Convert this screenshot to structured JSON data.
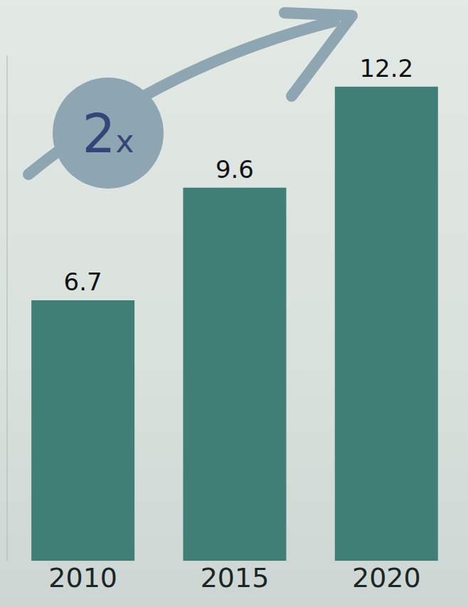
{
  "chart_data": {
    "type": "bar",
    "categories": [
      "2010",
      "2015",
      "2020"
    ],
    "values": [
      6.7,
      9.6,
      12.2
    ],
    "color": "#3f7f76",
    "ylim": [
      0,
      13
    ],
    "data_labels": true,
    "tick_labels": "x",
    "annotations": [
      "2x"
    ]
  }
}
